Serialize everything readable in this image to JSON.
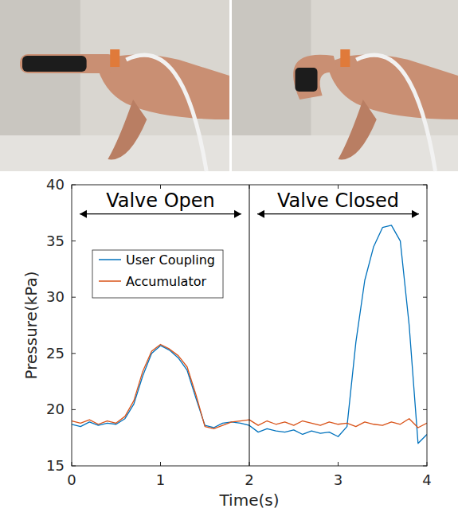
{
  "chart_data": {
    "type": "line",
    "x_label": "Time(s)",
    "y_label": "Pressure(kPa)",
    "x": [
      0.0,
      0.1,
      0.2,
      0.3,
      0.4,
      0.5,
      0.6,
      0.7,
      0.8,
      0.9,
      1.0,
      1.1,
      1.2,
      1.3,
      1.4,
      1.5,
      1.6,
      1.7,
      1.8,
      1.9,
      2.0,
      2.1,
      2.2,
      2.3,
      2.4,
      2.5,
      2.6,
      2.7,
      2.8,
      2.9,
      3.0,
      3.1,
      3.2,
      3.3,
      3.4,
      3.5,
      3.6,
      3.7,
      3.8,
      3.9,
      4.0
    ],
    "series": [
      {
        "name": "User Coupling",
        "color": "#0072bd",
        "values": [
          18.7,
          18.5,
          18.9,
          18.6,
          18.8,
          18.7,
          19.2,
          20.5,
          23.0,
          25.0,
          25.7,
          25.3,
          24.6,
          23.5,
          21.0,
          18.6,
          18.4,
          18.8,
          18.9,
          18.8,
          18.6,
          18.0,
          18.3,
          18.1,
          18.0,
          18.2,
          17.8,
          18.1,
          17.9,
          18.0,
          17.6,
          18.5,
          26.0,
          31.5,
          34.5,
          36.2,
          36.4,
          35.0,
          27.5,
          17.0,
          17.8
        ]
      },
      {
        "name": "Accumulator",
        "color": "#d95319",
        "values": [
          19.0,
          18.8,
          19.1,
          18.7,
          19.0,
          18.8,
          19.4,
          20.8,
          23.4,
          25.2,
          25.8,
          25.4,
          24.8,
          23.8,
          21.3,
          18.5,
          18.3,
          18.6,
          18.9,
          19.0,
          19.1,
          18.6,
          19.0,
          18.7,
          18.9,
          18.6,
          19.0,
          18.8,
          18.6,
          18.9,
          18.7,
          18.8,
          18.5,
          18.9,
          18.7,
          18.6,
          18.9,
          18.7,
          19.2,
          18.4,
          18.8
        ]
      }
    ],
    "xlim": [
      0,
      4
    ],
    "xticks": [
      0,
      1,
      2,
      3,
      4
    ],
    "ylim": [
      15,
      40
    ],
    "yticks": [
      15,
      20,
      25,
      30,
      35,
      40
    ],
    "vlines": [
      2
    ],
    "annotations": [
      {
        "text": "Valve Open",
        "x_start": 0,
        "x_end": 2,
        "y": 37.4
      },
      {
        "text": "Valve Closed",
        "x_start": 2,
        "x_end": 4,
        "y": 37.4
      }
    ],
    "legend": "upper left",
    "grid": false
  }
}
